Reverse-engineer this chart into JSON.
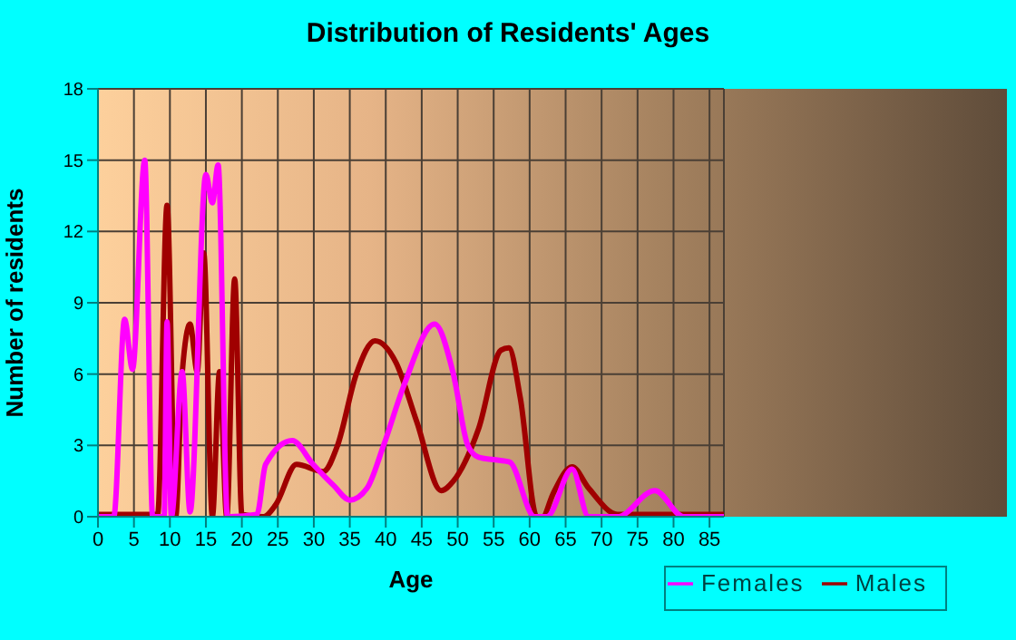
{
  "chart_data": {
    "type": "line",
    "title": "Distribution of Residents' Ages",
    "xlabel": "Age",
    "ylabel": "Number of residents",
    "xlim": [
      0,
      87
    ],
    "xticks": [
      0,
      5,
      10,
      15,
      20,
      25,
      30,
      35,
      40,
      45,
      50,
      55,
      60,
      65,
      70,
      75,
      80,
      85
    ],
    "ylim": [
      0,
      18
    ],
    "yticks": [
      0,
      3,
      6,
      9,
      12,
      15,
      18
    ],
    "grid": true,
    "legend": "bottom right",
    "marker": "none",
    "line_style": "solid",
    "series": [
      {
        "name": "Males",
        "color": "#a00000",
        "x": [
          0,
          8.3,
          9.6,
          10.8,
          11.7,
          12.8,
          13.8,
          14.7,
          15.9,
          16.9,
          17.9,
          19,
          20,
          23,
          24.7,
          27.6,
          31.3,
          33.3,
          35.9,
          38.5,
          41.4,
          44.3,
          47.7,
          49.4,
          52.9,
          56,
          57.1,
          58.7,
          61,
          61.8,
          63.3,
          65.9,
          68.2,
          72.2,
          87
        ],
        "values": [
          0.1,
          0.1,
          13.1,
          0,
          6,
          8.1,
          6.1,
          11.1,
          0,
          6.1,
          0,
          10,
          0.1,
          0,
          0.5,
          2.2,
          1.9,
          3,
          6,
          7.4,
          6.5,
          4,
          1.1,
          1.5,
          3.7,
          7,
          7.1,
          5,
          0,
          0,
          1,
          2.1,
          1.2,
          0.1,
          0.1
        ]
      },
      {
        "name": "Females",
        "color": "#ff00ff",
        "x": [
          0,
          2.2,
          3.7,
          4.8,
          6.5,
          7.6,
          9.2,
          9.6,
          10.2,
          11.7,
          12.8,
          15,
          15.9,
          16.7,
          18,
          22.1,
          23.3,
          27,
          29.9,
          32.8,
          35,
          37.4,
          39.7,
          42.5,
          46.8,
          49.4,
          51.4,
          52.9,
          55,
          57.2,
          60.7,
          62.4,
          65.9,
          68.2,
          72.2,
          77.4,
          81.4,
          87
        ],
        "values": [
          0,
          0,
          8.3,
          6.2,
          15,
          0,
          0,
          8.2,
          0,
          6.1,
          0.2,
          14.4,
          13.2,
          14.8,
          0,
          0.1,
          2.2,
          3.2,
          2.2,
          1.3,
          0.7,
          1.2,
          3,
          5.5,
          8.1,
          6,
          3,
          2.5,
          2.4,
          2.3,
          0,
          0,
          2,
          0,
          0,
          1.1,
          0,
          0
        ]
      }
    ]
  }
}
